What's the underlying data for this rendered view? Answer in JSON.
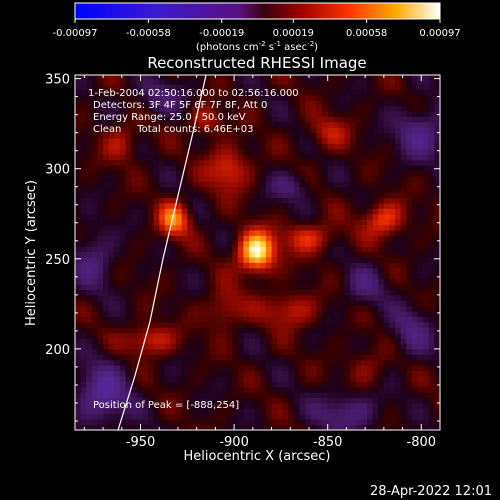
{
  "chart_data": {
    "type": "heatmap",
    "title": "Reconstructed RHESSI Image",
    "xlabel": "Heliocentric X (arcsec)",
    "ylabel": "Heliocentric Y (arcsec)",
    "xlim": [
      -985,
      -790
    ],
    "ylim": [
      155,
      352
    ],
    "xticks": [
      -950,
      -900,
      -850,
      -800
    ],
    "yticks": [
      200,
      250,
      300,
      350
    ],
    "xtick_labels": [
      "-950",
      "-900",
      "-850",
      "-800"
    ],
    "ytick_labels": [
      "200",
      "250",
      "300",
      "350"
    ],
    "colorbar": {
      "range": [
        -0.00097,
        0.00097
      ],
      "tick_values": [
        -0.00097,
        -0.00058,
        -0.00019,
        0.00019,
        0.00058,
        0.00097
      ],
      "tick_labels": [
        "-0.00097",
        "-0.00058",
        "-0.00019",
        "0.00019",
        "0.00058",
        "0.00097"
      ],
      "units_text": "(photons cm",
      "units_sup1": "-2",
      "units_mid": " s",
      "units_sup2": "-1",
      "units_end": " asec",
      "units_sup3": "-2",
      "units_close": ")"
    },
    "annotations": [
      "1-Feb-2004 02:50:16.000 to 02:56:16.000",
      "Detectors: 3F 4F 5F 6F 7F 8F, Att 0",
      "Energy Range: 25.0 - 50.0 keV",
      "Clean     Total counts: 6.46E+03"
    ],
    "peak_label": "Position of Peak = [-888,254]",
    "peak": {
      "x": -888,
      "y": 254
    },
    "sources": [
      {
        "x": -888,
        "y": 254,
        "amp": 1.0,
        "sx": 7,
        "sy": 8
      },
      {
        "x": -932,
        "y": 272,
        "amp": 0.62,
        "sx": 6,
        "sy": 7
      },
      {
        "x": -903,
        "y": 300,
        "amp": 0.45,
        "sx": 8,
        "sy": 9
      },
      {
        "x": -915,
        "y": 327,
        "amp": 0.35,
        "sx": 6,
        "sy": 6
      },
      {
        "x": -860,
        "y": 262,
        "amp": 0.42,
        "sx": 10,
        "sy": 6
      },
      {
        "x": -820,
        "y": 272,
        "amp": 0.5,
        "sx": 8,
        "sy": 7
      },
      {
        "x": -945,
        "y": 205,
        "amp": 0.45,
        "sx": 9,
        "sy": 6
      },
      {
        "x": -870,
        "y": 222,
        "amp": 0.38,
        "sx": 10,
        "sy": 7
      },
      {
        "x": -905,
        "y": 222,
        "amp": 0.35,
        "sx": 7,
        "sy": 8
      },
      {
        "x": -830,
        "y": 190,
        "amp": 0.22,
        "sx": 8,
        "sy": 8
      },
      {
        "x": -960,
        "y": 315,
        "amp": 0.3,
        "sx": 7,
        "sy": 8
      },
      {
        "x": -850,
        "y": 320,
        "amp": 0.3,
        "sx": 8,
        "sy": 7
      },
      {
        "x": -800,
        "y": 320,
        "amp": -0.45,
        "sx": 10,
        "sy": 10
      },
      {
        "x": -840,
        "y": 165,
        "amp": -0.4,
        "sx": 12,
        "sy": 8
      },
      {
        "x": -970,
        "y": 175,
        "amp": -0.55,
        "sx": 10,
        "sy": 12
      },
      {
        "x": -975,
        "y": 250,
        "amp": -0.35,
        "sx": 8,
        "sy": 12
      },
      {
        "x": -830,
        "y": 235,
        "amp": -0.3,
        "sx": 8,
        "sy": 8
      },
      {
        "x": -870,
        "y": 290,
        "amp": -0.3,
        "sx": 8,
        "sy": 6
      },
      {
        "x": -940,
        "y": 340,
        "amp": -0.3,
        "sx": 10,
        "sy": 7
      },
      {
        "x": -805,
        "y": 210,
        "amp": -0.35,
        "sx": 8,
        "sy": 10
      }
    ],
    "limb_curve": [
      [
        -962,
        155
      ],
      [
        -953,
        185
      ],
      [
        -945,
        215
      ],
      [
        -938,
        250
      ],
      [
        -930,
        285
      ],
      [
        -922,
        320
      ],
      [
        -915,
        352
      ]
    ]
  },
  "footer": {
    "timestamp": "28-Apr-2022 12:01"
  }
}
